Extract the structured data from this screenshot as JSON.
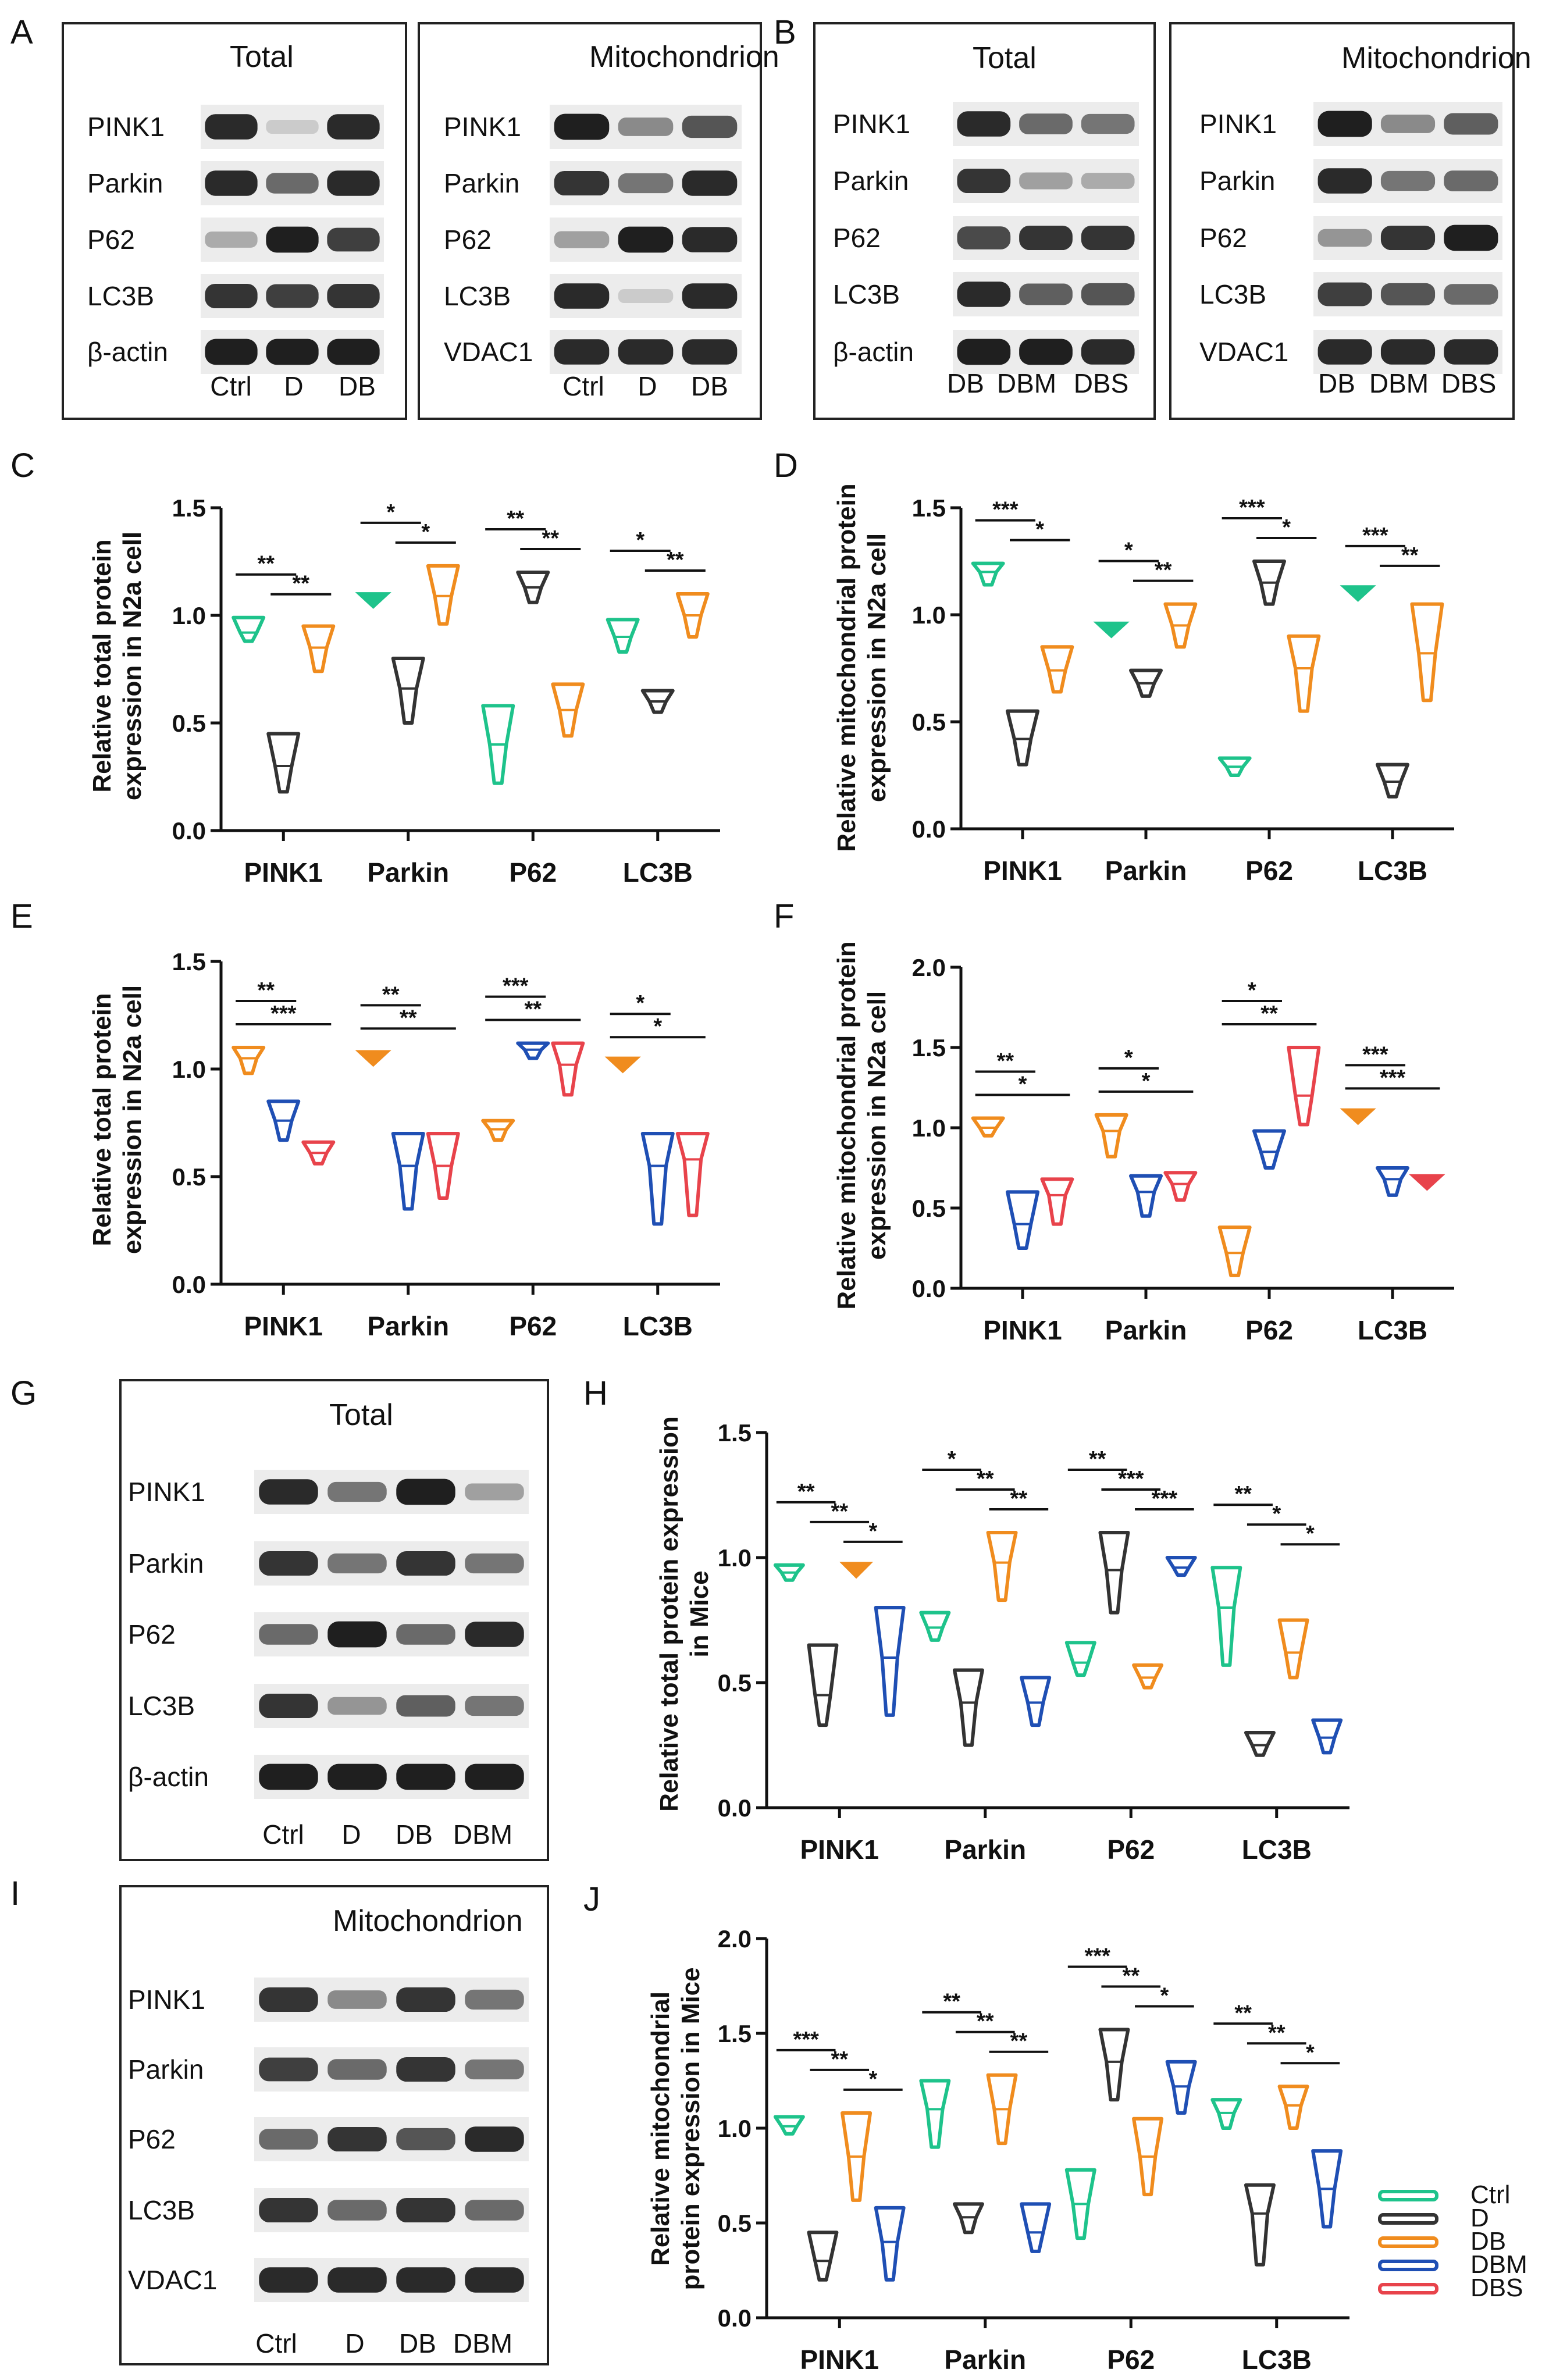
{
  "colors": {
    "Ctrl": "#1ec38b",
    "D": "#333333",
    "DB": "#f08c1e",
    "DBM": "#1f4fb4",
    "DBS": "#e8434b"
  },
  "legend": {
    "entries": [
      "Ctrl",
      "D",
      "DB",
      "DBM",
      "DBS"
    ]
  },
  "blots": [
    {
      "panel": "A",
      "title": "Total",
      "rows": [
        "PINK1",
        "Parkin",
        "P62",
        "LC3B",
        "β-actin"
      ],
      "lanes": [
        "Ctrl",
        "D",
        "DB"
      ],
      "intensity": [
        [
          0.9,
          0.15,
          0.9
        ],
        [
          0.9,
          0.6,
          0.9
        ],
        [
          0.3,
          0.95,
          0.8
        ],
        [
          0.85,
          0.8,
          0.85
        ],
        [
          0.95,
          0.95,
          0.95
        ]
      ]
    },
    {
      "panel": "",
      "title": "Mitochondrion",
      "rows": [
        "PINK1",
        "Parkin",
        "P62",
        "LC3B",
        "VDAC1"
      ],
      "lanes": [
        "Ctrl",
        "D",
        "DB"
      ],
      "intensity": [
        [
          0.95,
          0.45,
          0.7
        ],
        [
          0.85,
          0.55,
          0.9
        ],
        [
          0.35,
          0.95,
          0.9
        ],
        [
          0.9,
          0.15,
          0.9
        ],
        [
          0.9,
          0.9,
          0.9
        ]
      ]
    },
    {
      "panel": "B",
      "title": "Total",
      "rows": [
        "PINK1",
        "Parkin",
        "P62",
        "LC3B",
        "β-actin"
      ],
      "lanes": [
        "DB",
        "DBM",
        "DBS"
      ],
      "intensity": [
        [
          0.9,
          0.6,
          0.55
        ],
        [
          0.85,
          0.35,
          0.3
        ],
        [
          0.75,
          0.85,
          0.85
        ],
        [
          0.9,
          0.65,
          0.7
        ],
        [
          0.95,
          0.95,
          0.9
        ]
      ]
    },
    {
      "panel": "",
      "title": "Mitochondrion",
      "rows": [
        "PINK1",
        "Parkin",
        "P62",
        "LC3B",
        "VDAC1"
      ],
      "lanes": [
        "DB",
        "DBM",
        "DBS"
      ],
      "intensity": [
        [
          0.95,
          0.45,
          0.65
        ],
        [
          0.9,
          0.55,
          0.6
        ],
        [
          0.4,
          0.85,
          0.95
        ],
        [
          0.8,
          0.7,
          0.6
        ],
        [
          0.9,
          0.9,
          0.9
        ]
      ]
    },
    {
      "panel": "G",
      "title": "Total",
      "rows": [
        "PINK1",
        "Parkin",
        "P62",
        "LC3B",
        "β-actin"
      ],
      "lanes": [
        "Ctrl",
        "D",
        "DB",
        "DBM"
      ],
      "intensity": [
        [
          0.9,
          0.55,
          0.95,
          0.35
        ],
        [
          0.85,
          0.55,
          0.85,
          0.55
        ],
        [
          0.6,
          0.95,
          0.6,
          0.9
        ],
        [
          0.85,
          0.4,
          0.65,
          0.55
        ],
        [
          0.95,
          0.95,
          0.95,
          0.95
        ]
      ]
    },
    {
      "panel": "I",
      "title": "Mitochondrion",
      "rows": [
        "PINK1",
        "Parkin",
        "P62",
        "LC3B",
        "VDAC1"
      ],
      "lanes": [
        "Ctrl",
        "D",
        "DB",
        "DBM"
      ],
      "intensity": [
        [
          0.85,
          0.45,
          0.85,
          0.55
        ],
        [
          0.8,
          0.6,
          0.85,
          0.55
        ],
        [
          0.6,
          0.85,
          0.7,
          0.9
        ],
        [
          0.85,
          0.6,
          0.85,
          0.6
        ],
        [
          0.9,
          0.9,
          0.9,
          0.9
        ]
      ]
    }
  ],
  "chart_data": [
    {
      "panel": "C",
      "type": "violin",
      "ylabel": [
        "Relative total protein",
        "expression  in N2a cell"
      ],
      "ylim": [
        0,
        1.5
      ],
      "yticks": [
        "0.0",
        "0.5",
        "1.0",
        "1.5"
      ],
      "categories": [
        "PINK1",
        "Parkin",
        "P62",
        "LC3B"
      ],
      "groups": [
        "Ctrl",
        "D",
        "DB"
      ],
      "values": [
        [
          [
            0.88,
            0.99,
            0.92
          ],
          [
            0.18,
            0.45,
            0.3
          ],
          [
            0.74,
            0.95,
            0.85
          ]
        ],
        [
          [
            1.06,
            1.09,
            1.07
          ],
          [
            0.5,
            0.8,
            0.66
          ],
          [
            0.96,
            1.23,
            1.09
          ]
        ],
        [
          [
            0.22,
            0.58,
            0.4
          ],
          [
            1.06,
            1.2,
            1.13
          ],
          [
            0.44,
            0.68,
            0.56
          ]
        ],
        [
          [
            0.83,
            0.98,
            0.9
          ],
          [
            0.55,
            0.65,
            0.6
          ],
          [
            0.9,
            1.1,
            1.0
          ]
        ]
      ],
      "sig": [
        [
          {
            "label": "**",
            "from": 0,
            "to": 1
          },
          {
            "label": "**",
            "from": 1,
            "to": 2
          }
        ],
        [
          {
            "label": "*",
            "from": 0,
            "to": 1
          },
          {
            "label": "*",
            "from": 1,
            "to": 2
          }
        ],
        [
          {
            "label": "**",
            "from": 0,
            "to": 1
          },
          {
            "label": "**",
            "from": 1,
            "to": 2
          }
        ],
        [
          {
            "label": "*",
            "from": 0,
            "to": 1
          },
          {
            "label": "**",
            "from": 1,
            "to": 2
          }
        ]
      ]
    },
    {
      "panel": "D",
      "type": "violin",
      "ylabel": [
        "Relative mitochondrial protein",
        "expression  in N2a cell"
      ],
      "ylim": [
        0,
        1.5
      ],
      "yticks": [
        "0.0",
        "0.5",
        "1.0",
        "1.5"
      ],
      "categories": [
        "PINK1",
        "Parkin",
        "P62",
        "LC3B"
      ],
      "groups": [
        "Ctrl",
        "D",
        "DB"
      ],
      "values": [
        [
          [
            1.14,
            1.24,
            1.2
          ],
          [
            0.3,
            0.55,
            0.42
          ],
          [
            0.64,
            0.85,
            0.74
          ]
        ],
        [
          [
            0.9,
            0.96,
            0.93
          ],
          [
            0.62,
            0.74,
            0.68
          ],
          [
            0.85,
            1.05,
            0.95
          ]
        ],
        [
          [
            0.25,
            0.33,
            0.29
          ],
          [
            1.05,
            1.25,
            1.15
          ],
          [
            0.55,
            0.9,
            0.75
          ]
        ],
        [
          [
            1.08,
            1.12,
            1.1
          ],
          [
            0.15,
            0.3,
            0.22
          ],
          [
            0.6,
            1.05,
            0.82
          ]
        ]
      ],
      "sig": [
        [
          {
            "label": "***",
            "from": 0,
            "to": 1
          },
          {
            "label": "*",
            "from": 1,
            "to": 2
          }
        ],
        [
          {
            "label": "*",
            "from": 0,
            "to": 1
          },
          {
            "label": "**",
            "from": 1,
            "to": 2
          }
        ],
        [
          {
            "label": "***",
            "from": 0,
            "to": 1
          },
          {
            "label": "*",
            "from": 1,
            "to": 2
          }
        ],
        [
          {
            "label": "***",
            "from": 0,
            "to": 1
          },
          {
            "label": "**",
            "from": 1,
            "to": 2
          }
        ]
      ]
    },
    {
      "panel": "E",
      "type": "violin",
      "ylabel": [
        "Relative total protein",
        "expression  in N2a cell"
      ],
      "ylim": [
        0,
        1.5
      ],
      "yticks": [
        "0.0",
        "0.5",
        "1.0",
        "1.5"
      ],
      "categories": [
        "PINK1",
        "Parkin",
        "P62",
        "LC3B"
      ],
      "groups": [
        "DB",
        "DBM",
        "DBS"
      ],
      "values": [
        [
          [
            0.98,
            1.1,
            1.05
          ],
          [
            0.67,
            0.85,
            0.76
          ],
          [
            0.56,
            0.66,
            0.61
          ]
        ],
        [
          [
            1.02,
            1.08,
            1.05
          ],
          [
            0.35,
            0.7,
            0.55
          ],
          [
            0.4,
            0.7,
            0.55
          ]
        ],
        [
          [
            0.67,
            0.76,
            0.72
          ],
          [
            1.05,
            1.12,
            1.09
          ],
          [
            0.88,
            1.12,
            1.02
          ]
        ],
        [
          [
            1.0,
            1.04,
            1.02
          ],
          [
            0.28,
            0.7,
            0.55
          ],
          [
            0.32,
            0.7,
            0.58
          ]
        ]
      ],
      "sig": [
        [
          {
            "label": "**",
            "from": 0,
            "to": 1
          },
          {
            "label": "***",
            "from": 0,
            "to": 2
          }
        ],
        [
          {
            "label": "**",
            "from": 0,
            "to": 1
          },
          {
            "label": "**",
            "from": 0,
            "to": 2
          }
        ],
        [
          {
            "label": "***",
            "from": 0,
            "to": 1
          },
          {
            "label": "**",
            "from": 0,
            "to": 2
          }
        ],
        [
          {
            "label": "*",
            "from": 0,
            "to": 1
          },
          {
            "label": "*",
            "from": 0,
            "to": 2
          }
        ]
      ]
    },
    {
      "panel": "F",
      "type": "violin",
      "ylabel": [
        "Relative mitochondrial protein",
        "expression  in N2a cell"
      ],
      "ylim": [
        0,
        2.0
      ],
      "yticks": [
        "0.0",
        "0.5",
        "1.0",
        "1.5",
        "2.0"
      ],
      "categories": [
        "PINK1",
        "Parkin",
        "P62",
        "LC3B"
      ],
      "groups": [
        "DB",
        "DBM",
        "DBS"
      ],
      "values": [
        [
          [
            0.95,
            1.06,
            1.0
          ],
          [
            0.25,
            0.6,
            0.4
          ],
          [
            0.4,
            0.68,
            0.58
          ]
        ],
        [
          [
            0.82,
            1.08,
            0.98
          ],
          [
            0.45,
            0.7,
            0.6
          ],
          [
            0.55,
            0.72,
            0.65
          ]
        ],
        [
          [
            0.08,
            0.38,
            0.22
          ],
          [
            0.75,
            0.98,
            0.85
          ],
          [
            1.02,
            1.5,
            1.2
          ]
        ],
        [
          [
            1.04,
            1.1,
            1.07
          ],
          [
            0.58,
            0.75,
            0.68
          ],
          [
            0.62,
            0.7,
            0.66
          ]
        ]
      ],
      "sig": [
        [
          {
            "label": "**",
            "from": 0,
            "to": 1
          },
          {
            "label": "*",
            "from": 0,
            "to": 2
          }
        ],
        [
          {
            "label": "*",
            "from": 0,
            "to": 1
          },
          {
            "label": "*",
            "from": 0,
            "to": 2
          }
        ],
        [
          {
            "label": "*",
            "from": 0,
            "to": 1
          },
          {
            "label": "**",
            "from": 0,
            "to": 2
          }
        ],
        [
          {
            "label": "***",
            "from": 0,
            "to": 1
          },
          {
            "label": "***",
            "from": 0,
            "to": 2
          }
        ]
      ]
    },
    {
      "panel": "H",
      "type": "violin",
      "ylabel": [
        "Relative total protein expression",
        "in Mice"
      ],
      "ylim": [
        0,
        1.5
      ],
      "yticks": [
        "0.0",
        "0.5",
        "1.0",
        "1.5"
      ],
      "categories": [
        "PINK1",
        "Parkin",
        "P62",
        "LC3B"
      ],
      "groups": [
        "Ctrl",
        "D",
        "DB",
        "DBM"
      ],
      "values": [
        [
          [
            0.91,
            0.97,
            0.94
          ],
          [
            0.33,
            0.65,
            0.45
          ],
          [
            0.92,
            0.97,
            0.95
          ],
          [
            0.37,
            0.8,
            0.6
          ]
        ],
        [
          [
            0.67,
            0.78,
            0.72
          ],
          [
            0.25,
            0.55,
            0.42
          ],
          [
            0.83,
            1.1,
            0.98
          ],
          [
            0.33,
            0.52,
            0.42
          ]
        ],
        [
          [
            0.53,
            0.66,
            0.58
          ],
          [
            0.78,
            1.1,
            0.95
          ],
          [
            0.48,
            0.57,
            0.52
          ],
          [
            0.93,
            1.0,
            0.96
          ]
        ],
        [
          [
            0.57,
            0.96,
            0.8
          ],
          [
            0.21,
            0.3,
            0.25
          ],
          [
            0.52,
            0.75,
            0.62
          ],
          [
            0.22,
            0.35,
            0.28
          ]
        ]
      ],
      "sig": [
        [
          {
            "label": "**",
            "from": 0,
            "to": 1
          },
          {
            "label": "**",
            "from": 1,
            "to": 2
          },
          {
            "label": "*",
            "from": 2,
            "to": 3
          }
        ],
        [
          {
            "label": "*",
            "from": 0,
            "to": 1
          },
          {
            "label": "**",
            "from": 1,
            "to": 2
          },
          {
            "label": "**",
            "from": 2,
            "to": 3
          }
        ],
        [
          {
            "label": "**",
            "from": 0,
            "to": 1
          },
          {
            "label": "***",
            "from": 1,
            "to": 2
          },
          {
            "label": "***",
            "from": 2,
            "to": 3
          }
        ],
        [
          {
            "label": "**",
            "from": 0,
            "to": 1
          },
          {
            "label": "*",
            "from": 1,
            "to": 2
          },
          {
            "label": "*",
            "from": 2,
            "to": 3
          }
        ]
      ]
    },
    {
      "panel": "J",
      "type": "violin",
      "ylabel": [
        "Relative mitochondrial",
        "protein expression  in Mice"
      ],
      "ylim": [
        0,
        2.0
      ],
      "yticks": [
        "0.0",
        "0.5",
        "1.0",
        "1.5",
        "2.0"
      ],
      "categories": [
        "PINK1",
        "Parkin",
        "P62",
        "LC3B"
      ],
      "groups": [
        "Ctrl",
        "D",
        "DB",
        "DBM"
      ],
      "values": [
        [
          [
            0.97,
            1.06,
            1.01
          ],
          [
            0.2,
            0.45,
            0.3
          ],
          [
            0.62,
            1.08,
            0.85
          ],
          [
            0.2,
            0.58,
            0.4
          ]
        ],
        [
          [
            0.9,
            1.25,
            1.1
          ],
          [
            0.45,
            0.6,
            0.53
          ],
          [
            0.92,
            1.28,
            1.1
          ],
          [
            0.35,
            0.6,
            0.45
          ]
        ],
        [
          [
            0.42,
            0.78,
            0.6
          ],
          [
            1.15,
            1.52,
            1.35
          ],
          [
            0.65,
            1.05,
            0.85
          ],
          [
            1.08,
            1.35,
            1.22
          ]
        ],
        [
          [
            1.0,
            1.15,
            1.08
          ],
          [
            0.28,
            0.7,
            0.55
          ],
          [
            1.0,
            1.22,
            1.12
          ],
          [
            0.48,
            0.88,
            0.68
          ]
        ]
      ],
      "sig": [
        [
          {
            "label": "***",
            "from": 0,
            "to": 1
          },
          {
            "label": "**",
            "from": 1,
            "to": 2
          },
          {
            "label": "*",
            "from": 2,
            "to": 3
          }
        ],
        [
          {
            "label": "**",
            "from": 0,
            "to": 1
          },
          {
            "label": "**",
            "from": 1,
            "to": 2
          },
          {
            "label": "**",
            "from": 2,
            "to": 3
          }
        ],
        [
          {
            "label": "***",
            "from": 0,
            "to": 1
          },
          {
            "label": "**",
            "from": 1,
            "to": 2
          },
          {
            "label": "*",
            "from": 2,
            "to": 3
          }
        ],
        [
          {
            "label": "**",
            "from": 0,
            "to": 1
          },
          {
            "label": "**",
            "from": 1,
            "to": 2
          },
          {
            "label": "*",
            "from": 2,
            "to": 3
          }
        ]
      ]
    }
  ]
}
